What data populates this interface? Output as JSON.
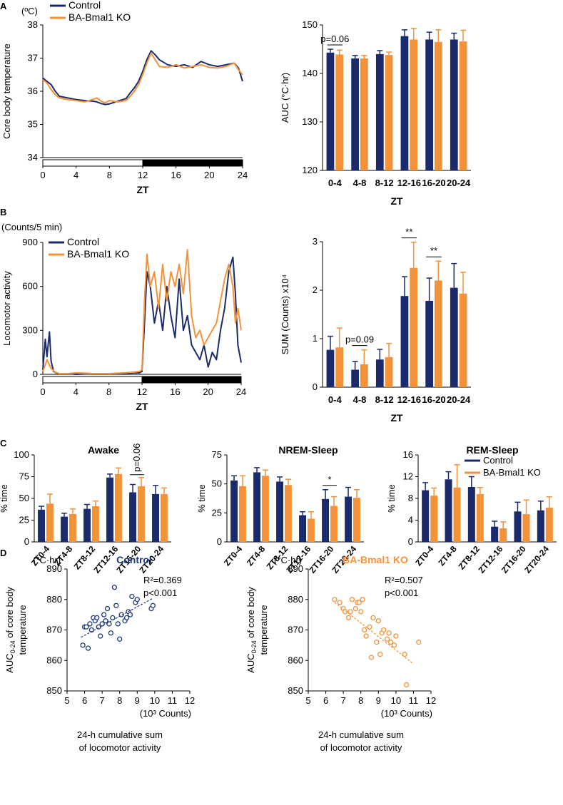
{
  "colors": {
    "control": "#1b2a6b",
    "ko": "#f4923a",
    "control_scatter": "#1f3a7a",
    "ko_scatter": "#f4923a",
    "axis": "#000000"
  },
  "legend": {
    "control": "Control",
    "ko": "BA-Bmal1 KO"
  },
  "panels": {
    "A": "A",
    "B": "B",
    "C": "C",
    "D": "D"
  },
  "chart_data": [
    {
      "id": "A-left",
      "type": "line",
      "unit_label": "(ºC)",
      "ylabel": "Core body temperature",
      "xlabel": "ZT",
      "ylim": [
        34,
        38
      ],
      "yticks": [
        34,
        35,
        36,
        37,
        38
      ],
      "xlim": [
        0,
        24
      ],
      "xticks": [
        0,
        4,
        8,
        12,
        16,
        20,
        24
      ],
      "light_dark_bar": {
        "light": [
          0,
          12
        ],
        "dark": [
          12,
          24
        ]
      },
      "series": [
        {
          "name": "Control",
          "x": [
            0,
            0.5,
            1,
            1.5,
            2,
            3,
            4,
            5,
            6,
            6.5,
            7,
            7.5,
            8,
            9,
            10,
            10.5,
            11,
            11.5,
            12,
            12.5,
            13,
            13.5,
            14,
            15,
            16,
            17,
            18,
            19,
            20,
            21,
            22,
            23,
            23.5,
            24
          ],
          "y": [
            36.4,
            36.3,
            36.2,
            36.0,
            35.85,
            35.8,
            35.75,
            35.72,
            35.7,
            35.68,
            35.63,
            35.6,
            35.62,
            35.7,
            35.78,
            35.95,
            36.1,
            36.3,
            36.6,
            36.95,
            37.22,
            37.1,
            36.95,
            36.8,
            36.75,
            36.8,
            36.72,
            36.9,
            36.8,
            36.75,
            36.8,
            36.85,
            36.7,
            36.3
          ]
        },
        {
          "name": "BA-Bmal1 KO",
          "x": [
            0,
            0.5,
            1,
            1.5,
            2,
            3,
            4,
            5,
            6,
            6.5,
            7,
            7.5,
            8,
            9,
            10,
            10.5,
            11,
            11.5,
            12,
            12.5,
            13,
            13.5,
            14,
            15,
            16,
            17,
            18,
            19,
            20,
            21,
            22,
            23,
            23.5,
            24
          ],
          "y": [
            36.35,
            36.25,
            36.05,
            35.9,
            35.8,
            35.75,
            35.72,
            35.68,
            35.75,
            35.8,
            35.7,
            35.65,
            35.72,
            35.68,
            35.72,
            35.85,
            36.0,
            36.2,
            36.5,
            36.85,
            37.15,
            36.95,
            36.75,
            36.72,
            36.8,
            36.7,
            36.75,
            36.8,
            36.72,
            36.7,
            36.75,
            36.85,
            36.65,
            36.5
          ]
        }
      ]
    },
    {
      "id": "A-right",
      "type": "bar",
      "ylabel": "AUC (°C·hr)",
      "xlabel": "ZT",
      "ylim": [
        120,
        150
      ],
      "yticks": [
        120,
        130,
        140,
        150
      ],
      "categories": [
        "0-4",
        "4-8",
        "8-12",
        "12-16",
        "16-20",
        "20-24"
      ],
      "series": [
        {
          "name": "Control",
          "values": [
            144.3,
            143.1,
            144.0,
            147.7,
            147.0,
            147.0
          ],
          "errors": [
            0.7,
            0.6,
            0.7,
            1.3,
            1.5,
            1.3
          ]
        },
        {
          "name": "BA-Bmal1 KO",
          "values": [
            143.9,
            143.1,
            143.8,
            147.0,
            146.5,
            146.6
          ],
          "errors": [
            0.9,
            0.6,
            0.6,
            2.3,
            2.5,
            2.3
          ]
        }
      ],
      "annotations": [
        {
          "text": "p=0.06",
          "category": 0
        }
      ]
    },
    {
      "id": "B-left",
      "type": "line",
      "unit_label": "(Counts/5 min)",
      "ylabel": "Locomotor activity",
      "xlabel": "ZT",
      "ylim": [
        0,
        900
      ],
      "yticks": [
        0,
        300,
        600,
        900
      ],
      "xlim": [
        0,
        24
      ],
      "xticks": [
        0,
        4,
        8,
        12,
        16,
        20,
        24
      ],
      "light_dark_bar": {
        "light": [
          0,
          12
        ],
        "dark": [
          12,
          24
        ]
      },
      "series": [
        {
          "name": "Control",
          "x": [
            0,
            0.3,
            0.5,
            0.8,
            1,
            1.3,
            1.6,
            2,
            3,
            4,
            6,
            8,
            10,
            11,
            11.7,
            12,
            12.3,
            12.6,
            13,
            13.5,
            14,
            14.5,
            15,
            15.5,
            16,
            16.5,
            17,
            17.5,
            18,
            18.5,
            19,
            19.5,
            20,
            20.5,
            21,
            21.5,
            22,
            22.5,
            23,
            23.3,
            23.6,
            24
          ],
          "y": [
            30,
            240,
            120,
            290,
            90,
            20,
            10,
            5,
            5,
            0,
            5,
            5,
            5,
            10,
            10,
            20,
            350,
            700,
            600,
            350,
            500,
            300,
            600,
            400,
            250,
            650,
            300,
            400,
            200,
            150,
            100,
            200,
            50,
            150,
            100,
            300,
            450,
            700,
            800,
            550,
            200,
            80
          ]
        },
        {
          "name": "BA-Bmal1 KO",
          "x": [
            0,
            0.5,
            1,
            1.5,
            2,
            3,
            4,
            6,
            8,
            10,
            11,
            11.7,
            12,
            12.3,
            12.6,
            13,
            13.5,
            14,
            14.5,
            15,
            15.5,
            16,
            16.5,
            17,
            17.5,
            18,
            18.5,
            19,
            19.5,
            20,
            20.5,
            21,
            21.5,
            22,
            22.5,
            23,
            23.3,
            23.6,
            24
          ],
          "y": [
            20,
            100,
            40,
            15,
            5,
            5,
            10,
            5,
            5,
            10,
            15,
            20,
            30,
            500,
            820,
            600,
            700,
            450,
            750,
            500,
            700,
            600,
            750,
            550,
            850,
            400,
            250,
            300,
            200,
            250,
            300,
            350,
            500,
            650,
            750,
            600,
            350,
            450,
            300
          ]
        }
      ]
    },
    {
      "id": "B-right",
      "type": "bar",
      "ylabel": "SUM (Counts) x10⁴",
      "xlabel": "ZT",
      "ylim": [
        0,
        3
      ],
      "yticks": [
        0,
        1,
        2,
        3
      ],
      "categories": [
        "0-4",
        "4-8",
        "8-12",
        "12-16",
        "16-20",
        "20-24"
      ],
      "series": [
        {
          "name": "Control",
          "values": [
            0.77,
            0.36,
            0.57,
            1.88,
            1.78,
            2.05
          ],
          "errors": [
            0.28,
            0.17,
            0.21,
            0.4,
            0.47,
            0.5
          ]
        },
        {
          "name": "BA-Bmal1 KO",
          "values": [
            0.82,
            0.47,
            0.62,
            2.46,
            2.2,
            1.93
          ],
          "errors": [
            0.4,
            0.3,
            0.28,
            0.53,
            0.4,
            0.44
          ]
        }
      ],
      "annotations": [
        {
          "text": "p=0.09",
          "category": 1
        },
        {
          "text": "**",
          "category": 3
        },
        {
          "text": "**",
          "category": 4
        }
      ]
    },
    {
      "id": "C-awake",
      "type": "bar",
      "title": "Awake",
      "ylabel": "% time",
      "ylim": [
        0,
        100
      ],
      "yticks": [
        0,
        25,
        50,
        75,
        100
      ],
      "categories": [
        "ZT0-4",
        "ZT4-8",
        "ZT8-12",
        "ZT12-16",
        "ZT16-20",
        "ZT20-24"
      ],
      "series": [
        {
          "name": "Control",
          "values": [
            37,
            29,
            38,
            74,
            57,
            55
          ],
          "errors": [
            4,
            4,
            5,
            4,
            9,
            10
          ]
        },
        {
          "name": "BA-Bmal1 KO",
          "values": [
            44,
            32,
            41,
            78,
            64,
            55
          ],
          "errors": [
            11,
            6,
            6,
            7,
            10,
            7
          ]
        }
      ],
      "annotations": [
        {
          "text": "p=0.06",
          "category": 4,
          "rotated": true
        }
      ]
    },
    {
      "id": "C-nrem",
      "type": "bar",
      "title": "NREM-Sleep",
      "ylabel": "% time",
      "ylim": [
        0,
        75
      ],
      "yticks": [
        0,
        25,
        50,
        75
      ],
      "categories": [
        "ZT0-4",
        "ZT4-8",
        "ZT8-12",
        "ZT12-16",
        "ZT16-20",
        "ZT20-24"
      ],
      "series": [
        {
          "name": "Control",
          "values": [
            53,
            60,
            52,
            23,
            37,
            39
          ],
          "errors": [
            4,
            4,
            4,
            3,
            8,
            8
          ]
        },
        {
          "name": "BA-Bmal1 KO",
          "values": [
            48,
            57,
            49,
            20,
            31,
            38
          ],
          "errors": [
            9,
            5,
            5,
            6,
            8,
            7
          ]
        }
      ],
      "annotations": [
        {
          "text": "*",
          "category": 4
        }
      ]
    },
    {
      "id": "C-rem",
      "type": "bar",
      "title": "REM-Sleep",
      "ylabel": "% time",
      "ylim": [
        0,
        16
      ],
      "yticks": [
        0,
        4,
        8,
        12,
        16
      ],
      "categories": [
        "ZT0-4",
        "ZT4-8",
        "ZT8-12",
        "ZT12-16",
        "ZT16-20",
        "ZT20-24"
      ],
      "series": [
        {
          "name": "Control",
          "values": [
            9.5,
            11.5,
            10.1,
            2.8,
            5.6,
            5.8
          ],
          "errors": [
            1.4,
            1.4,
            1.9,
            1.0,
            1.7,
            1.7
          ]
        },
        {
          "name": "BA-Bmal1 KO",
          "values": [
            8.5,
            10.0,
            8.8,
            2.5,
            5.1,
            6.3
          ],
          "errors": [
            1.4,
            4.2,
            1.2,
            1.2,
            2.6,
            2.0
          ]
        }
      ]
    },
    {
      "id": "D-control",
      "type": "scatter",
      "title": "Control",
      "unit_label": "(°C·hr)",
      "x_unit_label": "(10³ Counts)",
      "ylabel_lines": [
        "AUC",
        "0-24",
        " of core body",
        "temperature"
      ],
      "xlabel_lines": [
        "24-h cumulative sum",
        "of locomotor activity"
      ],
      "xlim": [
        5,
        12
      ],
      "xticks": [
        5,
        6,
        7,
        8,
        9,
        10,
        11,
        12
      ],
      "ylim": [
        850,
        890
      ],
      "yticks": [
        850,
        860,
        870,
        880,
        890
      ],
      "stats": [
        "R²=0.369",
        "p<0.001"
      ],
      "fit": {
        "x": [
          5.8,
          9.9
        ],
        "y": [
          867.6,
          880.4
        ]
      },
      "points": [
        [
          5.9,
          865
        ],
        [
          6.0,
          871
        ],
        [
          6.1,
          871
        ],
        [
          6.2,
          864
        ],
        [
          6.3,
          872
        ],
        [
          6.5,
          874
        ],
        [
          6.6,
          873
        ],
        [
          6.7,
          874
        ],
        [
          6.4,
          870
        ],
        [
          6.8,
          871
        ],
        [
          6.9,
          868
        ],
        [
          7.0,
          872
        ],
        [
          7.1,
          875
        ],
        [
          7.2,
          873
        ],
        [
          7.3,
          877
        ],
        [
          7.4,
          872
        ],
        [
          7.5,
          869
        ],
        [
          7.6,
          874
        ],
        [
          7.7,
          884
        ],
        [
          7.8,
          878
        ],
        [
          7.9,
          872
        ],
        [
          8.0,
          867
        ],
        [
          8.1,
          875
        ],
        [
          8.3,
          873
        ],
        [
          8.4,
          874
        ],
        [
          8.5,
          876
        ],
        [
          8.6,
          875
        ],
        [
          8.7,
          881
        ],
        [
          8.9,
          879
        ],
        [
          9.0,
          880
        ],
        [
          9.8,
          877
        ],
        [
          9.9,
          878
        ]
      ]
    },
    {
      "id": "D-ko",
      "type": "scatter",
      "title": "BA-Bmal1 KO",
      "unit_label": "(°C·hr)",
      "x_unit_label": "(10³ Counts)",
      "ylabel_lines": [
        "AUC",
        "0-24",
        " of core body",
        "temperature"
      ],
      "xlabel_lines": [
        "24-h cumulative sum",
        "of locomotor activity"
      ],
      "xlim": [
        5,
        12
      ],
      "xticks": [
        5,
        6,
        7,
        8,
        9,
        10,
        11,
        12
      ],
      "ylim": [
        850,
        890
      ],
      "yticks": [
        850,
        860,
        870,
        880,
        890
      ],
      "stats": [
        "R²=0.507",
        "p<0.001"
      ],
      "fit": {
        "x": [
          6.5,
          11.0
        ],
        "y": [
          879.0,
          858.9
        ]
      },
      "points": [
        [
          6.5,
          880
        ],
        [
          6.8,
          879
        ],
        [
          7.0,
          877
        ],
        [
          7.1,
          876
        ],
        [
          7.3,
          874
        ],
        [
          7.4,
          876
        ],
        [
          7.5,
          880
        ],
        [
          7.7,
          877
        ],
        [
          7.8,
          879
        ],
        [
          7.9,
          879
        ],
        [
          8.0,
          876
        ],
        [
          8.1,
          880
        ],
        [
          8.2,
          870
        ],
        [
          8.3,
          868
        ],
        [
          8.5,
          871
        ],
        [
          8.6,
          861
        ],
        [
          8.7,
          874
        ],
        [
          8.9,
          866
        ],
        [
          9.0,
          873
        ],
        [
          9.1,
          862
        ],
        [
          9.2,
          869
        ],
        [
          9.3,
          870
        ],
        [
          9.5,
          867
        ],
        [
          9.6,
          869
        ],
        [
          9.7,
          866
        ],
        [
          9.9,
          865
        ],
        [
          10.0,
          868
        ],
        [
          10.5,
          862
        ],
        [
          10.6,
          852
        ],
        [
          11.3,
          866
        ]
      ]
    }
  ]
}
